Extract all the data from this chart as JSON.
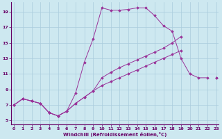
{
  "xlabel": "Windchill (Refroidissement éolien,°C)",
  "background_color": "#cde8f0",
  "grid_color": "#aaccdd",
  "line_color": "#993399",
  "x_ticks": [
    0,
    1,
    2,
    3,
    4,
    5,
    6,
    7,
    8,
    9,
    10,
    11,
    12,
    13,
    14,
    15,
    16,
    17,
    18,
    19,
    20,
    21,
    22,
    23
  ],
  "y_ticks": [
    5,
    7,
    9,
    11,
    13,
    15,
    17,
    19
  ],
  "xlim": [
    -0.3,
    23.3
  ],
  "ylim": [
    4.5,
    20.2
  ],
  "line1_x": [
    0,
    1,
    2,
    3,
    4,
    5,
    6,
    7,
    8,
    9,
    10,
    11,
    12,
    13,
    14,
    15,
    16,
    17,
    18,
    19,
    20,
    21,
    22,
    23
  ],
  "line1_y": [
    7.0,
    7.8,
    7.5,
    7.2,
    6.0,
    5.6,
    6.2,
    7.2,
    8.0,
    8.8,
    9.5,
    10.0,
    10.5,
    11.0,
    11.5,
    12.0,
    12.5,
    13.0,
    13.5,
    14.0,
    null,
    null,
    null,
    10.5
  ],
  "line2_x": [
    0,
    1,
    2,
    3,
    4,
    5,
    6,
    7,
    8,
    9,
    10,
    11,
    12,
    13,
    14,
    15,
    16,
    17,
    18,
    19,
    20,
    21,
    22,
    23
  ],
  "line2_y": [
    7.0,
    7.8,
    7.5,
    7.2,
    6.0,
    5.6,
    6.2,
    7.2,
    8.0,
    8.8,
    10.5,
    11.2,
    11.8,
    12.3,
    12.8,
    13.3,
    13.8,
    14.3,
    15.0,
    15.8,
    null,
    null,
    null,
    10.5
  ],
  "line3_x": [
    0,
    1,
    2,
    3,
    4,
    5,
    6,
    7,
    8,
    9,
    10,
    11,
    12,
    13,
    14,
    15,
    16,
    17,
    18,
    19,
    20,
    21,
    22,
    23
  ],
  "line3_y": [
    7.0,
    7.8,
    7.5,
    7.2,
    6.0,
    5.6,
    6.2,
    8.5,
    12.5,
    15.5,
    19.5,
    19.2,
    19.2,
    19.3,
    19.5,
    19.5,
    18.5,
    17.2,
    16.5,
    13.0,
    11.0,
    10.5,
    10.5,
    null
  ]
}
